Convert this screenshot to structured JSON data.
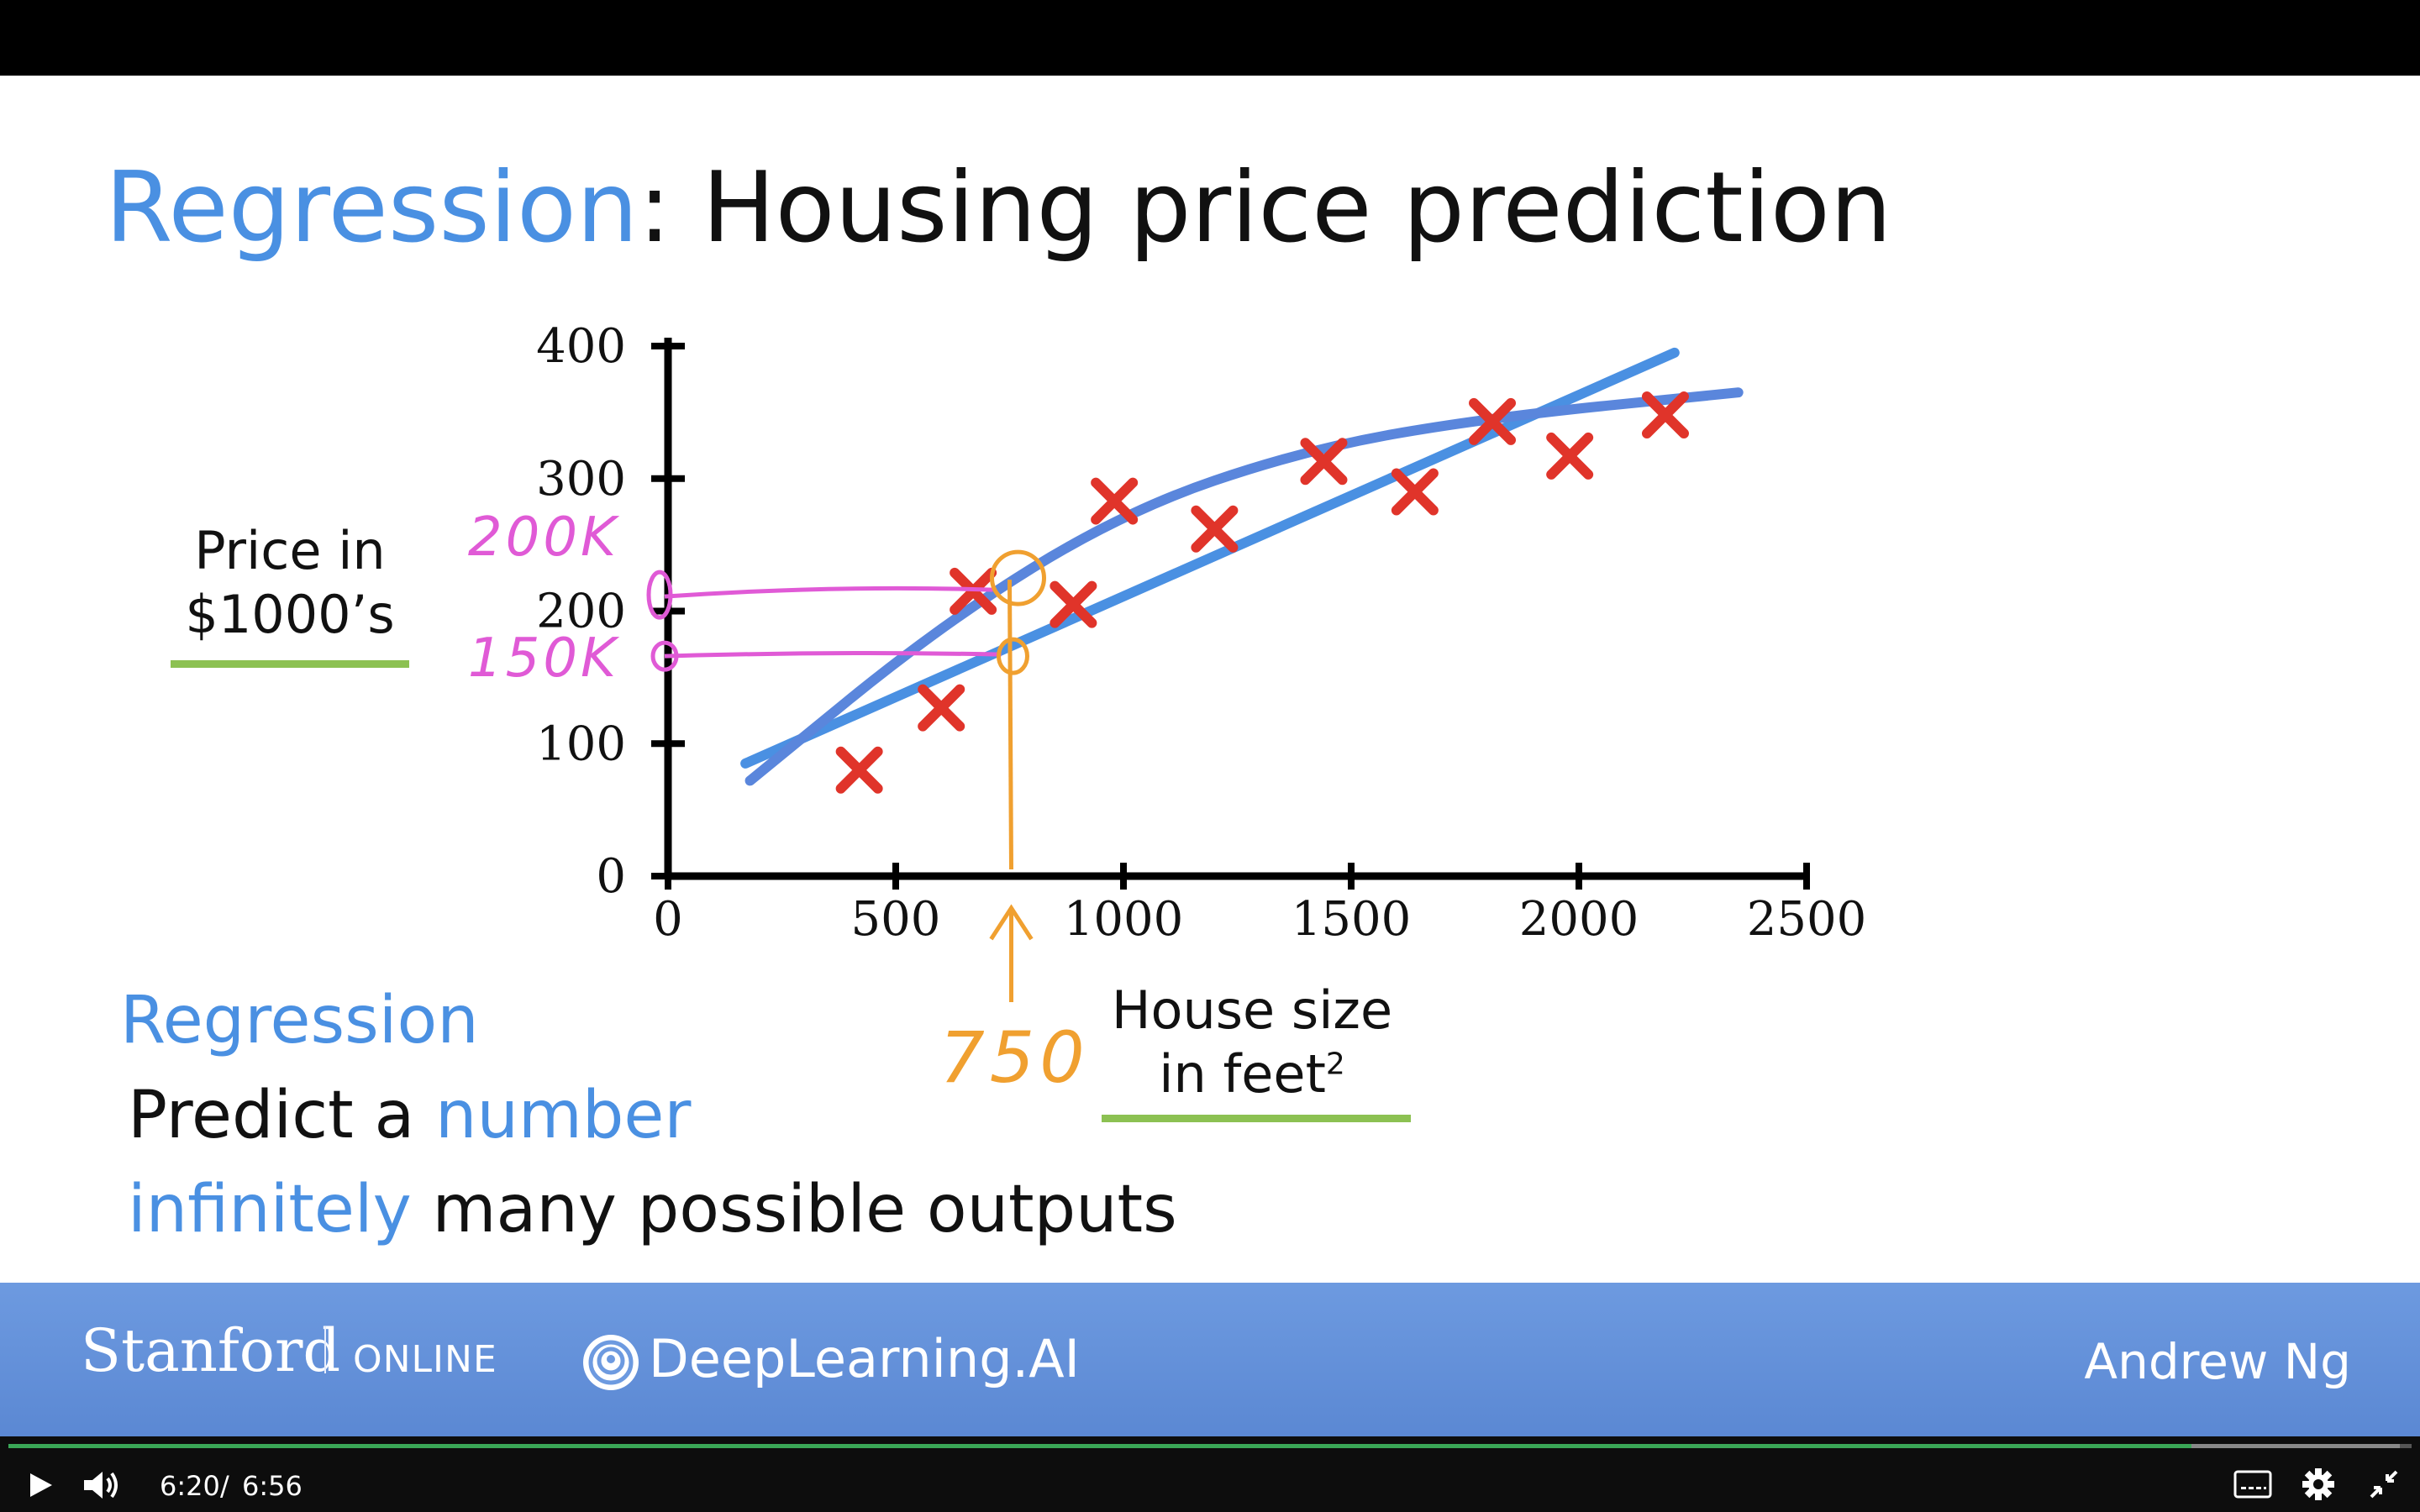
{
  "slide": {
    "title_highlight": "Regression",
    "title_rest": ": Housing price prediction",
    "y_axis_label_line1": "Price in",
    "y_axis_label_line2": "$1000’s",
    "x_axis_label_line1": "House size",
    "x_axis_label_line2": "in feet",
    "x_axis_label_sup": "2",
    "annotations": {
      "y_high": "200K",
      "y_low": "150K",
      "x_marker": "750"
    },
    "text_heading": "Regression",
    "text_line1_a": "Predict a ",
    "text_line1_b": "number",
    "text_line2_a": "infinitely",
    "text_line2_b": " many possible outputs"
  },
  "chart_data": {
    "type": "scatter",
    "x": [
      420,
      600,
      670,
      890,
      980,
      1200,
      1440,
      1640,
      1810,
      1980,
      2190
    ],
    "y": [
      80,
      127,
      215,
      205,
      283,
      262,
      313,
      290,
      343,
      317,
      348
    ],
    "xlim": [
      0,
      2500
    ],
    "ylim": [
      0,
      400
    ],
    "x_ticks": [
      0,
      500,
      1000,
      1500,
      2000,
      2500
    ],
    "y_ticks": [
      0,
      100,
      200,
      300,
      400
    ],
    "fit_lines": [
      {
        "kind": "straight",
        "x": [
          170,
          2210
        ],
        "y": [
          85,
          395
        ]
      },
      {
        "kind": "curve",
        "x": [
          180,
          600,
          1000,
          1400,
          1800,
          2350
        ],
        "y": [
          72,
          190,
          275,
          322,
          346,
          365
        ]
      }
    ],
    "colors": {
      "marker": "#e0342a",
      "fit": "#4a90e2",
      "annotation_pink": "#e05ad6",
      "annotation_orange": "#f0a030"
    }
  },
  "footer": {
    "stanford": "Stanford",
    "online": "ONLINE",
    "deeplearning": "DeepLearning.AI",
    "author": "Andrew Ng"
  },
  "player": {
    "time_current": "6:20",
    "time_sep": "/",
    "time_total": "6:56",
    "progress": 0.9085,
    "buffered": 0.995,
    "icons": [
      "play-icon",
      "volume-icon",
      "captions-icon",
      "gear-icon",
      "exit-fullscreen-icon"
    ],
    "accent": "#3aa757"
  }
}
